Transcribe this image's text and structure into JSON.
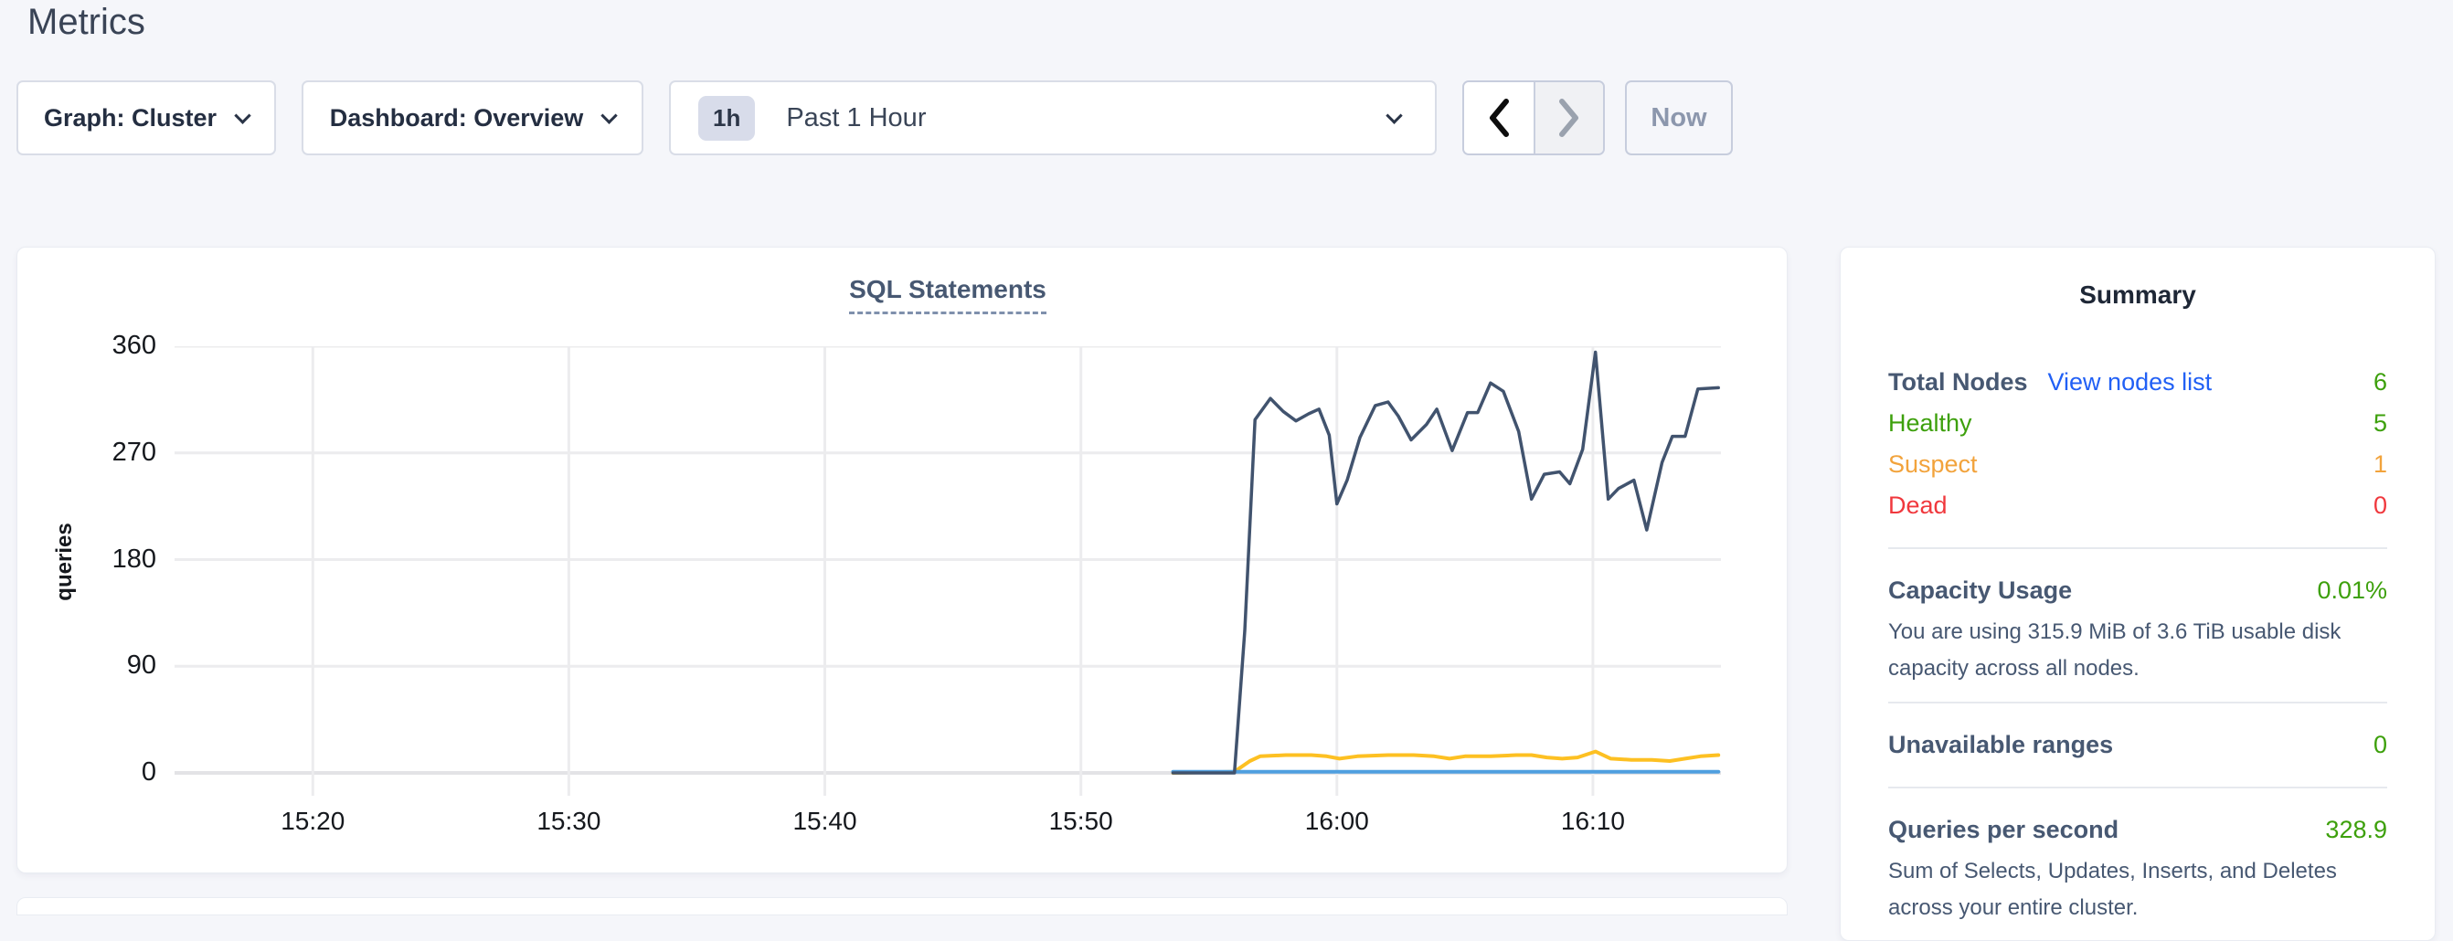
{
  "page": {
    "title": "Metrics"
  },
  "toolbar": {
    "graph_dropdown": "Graph: Cluster",
    "dashboard_dropdown": "Dashboard: Overview",
    "time_badge": "1h",
    "time_label": "Past 1 Hour",
    "now_label": "Now"
  },
  "chart_data": {
    "type": "line",
    "title": "SQL Statements",
    "ylabel": "queries",
    "xlabel": "",
    "grid": true,
    "legend": "none",
    "ylim": [
      0,
      360
    ],
    "ytick_values": [
      360,
      270,
      180,
      90,
      0
    ],
    "xticks": [
      "15:20",
      "15:30",
      "15:40",
      "15:50",
      "16:00",
      "16:10"
    ],
    "xtick_positions": [
      0,
      10,
      20,
      30,
      40,
      50
    ],
    "x_domain": [
      -5.4,
      55.0
    ],
    "x_unit": "minutes after 15:20",
    "series": [
      {
        "name": "yellow-node-queries",
        "color": "#fdc022",
        "width": 4,
        "points": [
          [
            33.6,
            0
          ],
          [
            36.0,
            1
          ],
          [
            36.6,
            10
          ],
          [
            37.0,
            14
          ],
          [
            38.0,
            15
          ],
          [
            39.0,
            15
          ],
          [
            39.6,
            14
          ],
          [
            40.1,
            12
          ],
          [
            40.8,
            14
          ],
          [
            42.0,
            15
          ],
          [
            43.0,
            15
          ],
          [
            43.8,
            14
          ],
          [
            44.4,
            12
          ],
          [
            45.0,
            14
          ],
          [
            46.0,
            14
          ],
          [
            47.0,
            15
          ],
          [
            47.6,
            15
          ],
          [
            48.2,
            13
          ],
          [
            48.8,
            12
          ],
          [
            49.4,
            13
          ],
          [
            50.1,
            18
          ],
          [
            50.7,
            12
          ],
          [
            51.5,
            11
          ],
          [
            52.3,
            11
          ],
          [
            53.0,
            10
          ],
          [
            53.6,
            12
          ],
          [
            54.2,
            14
          ],
          [
            54.9,
            15
          ]
        ]
      },
      {
        "name": "blue-node-queries",
        "color": "#4f9fdf",
        "width": 4,
        "points": [
          [
            33.6,
            1
          ],
          [
            54.9,
            1
          ]
        ]
      },
      {
        "name": "dark-blue-node-queries",
        "color": "#41536e",
        "width": 3.5,
        "points": [
          [
            33.6,
            0
          ],
          [
            36.0,
            0
          ],
          [
            36.4,
            120
          ],
          [
            36.8,
            298
          ],
          [
            37.4,
            316
          ],
          [
            37.9,
            305
          ],
          [
            38.4,
            297
          ],
          [
            38.9,
            303
          ],
          [
            39.3,
            307
          ],
          [
            39.7,
            285
          ],
          [
            40.0,
            227
          ],
          [
            40.4,
            247
          ],
          [
            40.9,
            283
          ],
          [
            41.5,
            310
          ],
          [
            42.0,
            313
          ],
          [
            42.4,
            301
          ],
          [
            42.9,
            281
          ],
          [
            43.5,
            294
          ],
          [
            43.9,
            307
          ],
          [
            44.5,
            272
          ],
          [
            45.1,
            304
          ],
          [
            45.5,
            304
          ],
          [
            46.0,
            329
          ],
          [
            46.5,
            322
          ],
          [
            47.1,
            288
          ],
          [
            47.6,
            231
          ],
          [
            48.1,
            252
          ],
          [
            48.7,
            254
          ],
          [
            49.1,
            244
          ],
          [
            49.6,
            273
          ],
          [
            50.1,
            355
          ],
          [
            50.6,
            231
          ],
          [
            51.0,
            240
          ],
          [
            51.6,
            247
          ],
          [
            52.1,
            205
          ],
          [
            52.7,
            262
          ],
          [
            53.1,
            284
          ],
          [
            53.6,
            284
          ],
          [
            54.1,
            324
          ],
          [
            54.9,
            325
          ]
        ]
      }
    ]
  },
  "summary": {
    "title": "Summary",
    "total_nodes": {
      "label": "Total Nodes",
      "link": "View nodes list",
      "value": "6",
      "color": "green"
    },
    "status_rows": [
      {
        "label": "Healthy",
        "value": "5",
        "color": "green"
      },
      {
        "label": "Suspect",
        "value": "1",
        "color": "orange"
      },
      {
        "label": "Dead",
        "value": "0",
        "color": "red"
      }
    ],
    "capacity": {
      "label": "Capacity Usage",
      "value": "0.01%",
      "description": "You are using 315.9 MiB of 3.6 TiB usable disk capacity across all nodes."
    },
    "unavailable": {
      "label": "Unavailable ranges",
      "value": "0"
    },
    "qps": {
      "label": "Queries per second",
      "value": "328.9",
      "description": "Sum of Selects, Updates, Inserts, and Deletes across your entire cluster."
    }
  },
  "colors": {
    "bg": "#f5f6fa",
    "slate": "#475872",
    "green": "#3da00c",
    "orange": "#f2a33c",
    "red": "#f0383d",
    "link-blue": "#2160f5",
    "gridline": "#ececee",
    "baseline": "#e3e3e6"
  }
}
